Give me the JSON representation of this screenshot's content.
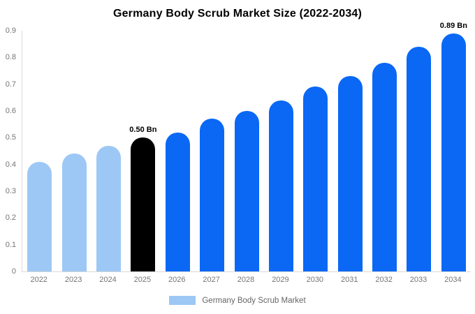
{
  "title": "Germany Body Scrub Market Size (2022-2034)",
  "colors": {
    "historical_bar": "#9dc8f5",
    "highlight_bar": "#000000",
    "forecast_bar": "#0a68f5",
    "axis_line": "#d9d9d9",
    "tick_text": "#757575",
    "legend_text": "#666666"
  },
  "chart_data": {
    "type": "bar",
    "title": "Germany Body Scrub Market Size (2022-2034)",
    "unit": "Bn",
    "categories": [
      "2022",
      "2023",
      "2024",
      "2025",
      "2026",
      "2027",
      "2028",
      "2029",
      "2030",
      "2031",
      "2032",
      "2033",
      "2034"
    ],
    "values": [
      0.41,
      0.44,
      0.47,
      0.5,
      0.52,
      0.57,
      0.6,
      0.64,
      0.69,
      0.73,
      0.78,
      0.84,
      0.89
    ],
    "bar_colors": [
      "#9dc8f5",
      "#9dc8f5",
      "#9dc8f5",
      "#000000",
      "#0a68f5",
      "#0a68f5",
      "#0a68f5",
      "#0a68f5",
      "#0a68f5",
      "#0a68f5",
      "#0a68f5",
      "#0a68f5",
      "#0a68f5"
    ],
    "yticks": [
      "0",
      "0.1",
      "0.2",
      "0.3",
      "0.4",
      "0.5",
      "0.6",
      "0.7",
      "0.8",
      "0.9"
    ],
    "ylim": [
      0,
      0.9
    ],
    "grid": false,
    "legend_position": "bottom",
    "annotations": [
      {
        "category": "2025",
        "text": "0.50 Bn"
      },
      {
        "category": "2034",
        "text": "0.89 Bn"
      }
    ]
  },
  "legend": {
    "label": "Germany Body Scrub Market",
    "swatch_color": "#9dc8f5"
  }
}
